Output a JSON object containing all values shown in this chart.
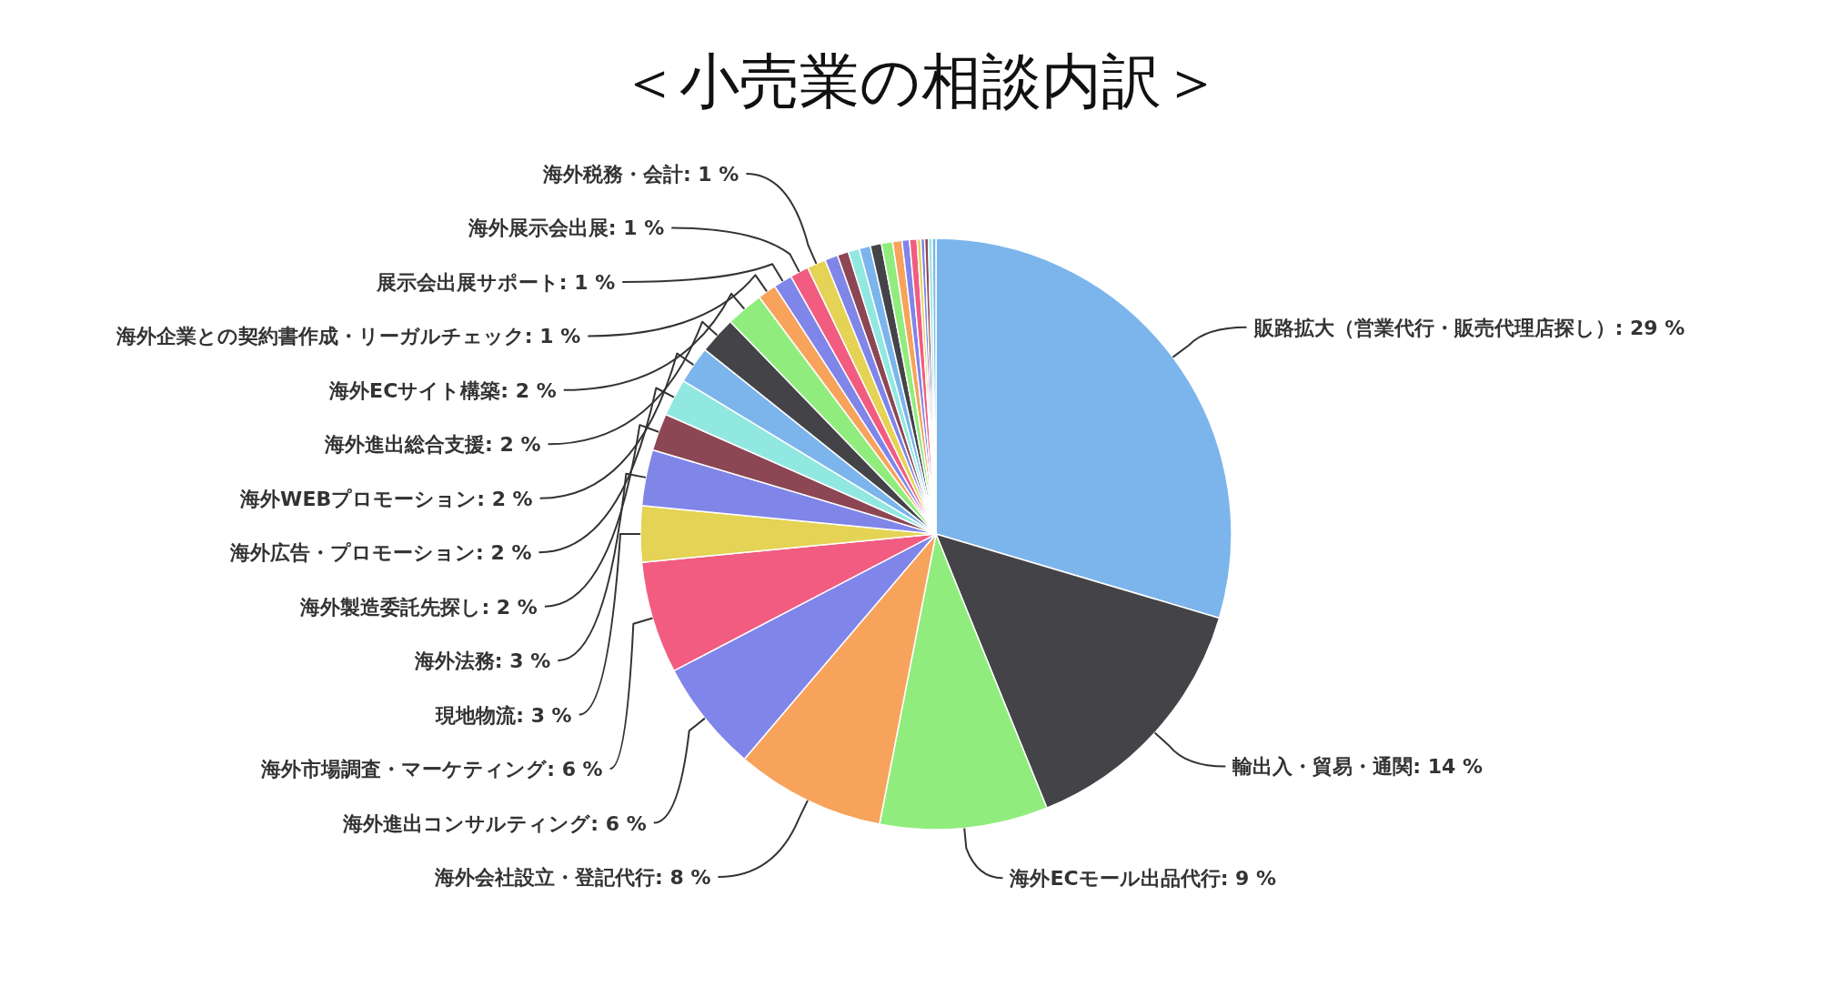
{
  "chart_data": {
    "type": "pie",
    "title": "＜小売業の相談内訳＞",
    "categories": [
      "販路拡大（営業代行・販売代理店探し）",
      "輸出入・貿易・通関",
      "海外ECモール出品代行",
      "海外会社設立・登記代行",
      "海外進出コンサルティング",
      "海外市場調査・マーケティング",
      "現地物流",
      "海外法務",
      "海外製造委託先探し",
      "海外広告・プロモーション",
      "海外WEBプロモーション",
      "海外進出総合支援",
      "海外ECサイト構築",
      "海外企業との契約書作成・リーガルチェック",
      "展示会出展サポート",
      "海外展示会出展",
      "海外税務・会計",
      null,
      null,
      null,
      null,
      null,
      null,
      null,
      null,
      null,
      null,
      null,
      null,
      null,
      null
    ],
    "values": [
      29,
      14,
      9,
      8,
      6,
      6,
      3,
      3,
      2,
      2,
      2,
      2,
      2,
      1,
      1,
      1,
      1,
      0.7,
      0.6,
      0.6,
      0.6,
      0.6,
      0.6,
      0.5,
      0.4,
      0.4,
      0.2,
      0.2,
      0.2,
      0.2,
      0.2
    ],
    "value_labels": [
      "29 %",
      "14 %",
      "9 %",
      "8 %",
      "6 %",
      "6 %",
      "3 %",
      "3 %",
      "2 %",
      "2 %",
      "2 %",
      "2 %",
      "2 %",
      "1 %",
      "1 %",
      "1 %",
      "1 %",
      null,
      null,
      null,
      null,
      null,
      null,
      null,
      null,
      null,
      null,
      null,
      null,
      null,
      null
    ],
    "colors": [
      "#7cb5ec",
      "#434348",
      "#90ed7d",
      "#f7a35c",
      "#8085e9",
      "#f15c80",
      "#e4d354",
      "#8085e8",
      "#8d4653",
      "#91e8e1",
      "#7cb5ec",
      "#434348",
      "#90ed7d",
      "#f7a35c",
      "#8085e9",
      "#f15c80",
      "#e4d354",
      "#8085e8",
      "#8d4653",
      "#91e8e1",
      "#7cb5ec",
      "#434348",
      "#90ed7d",
      "#f7a35c",
      "#8085e9",
      "#f15c80",
      "#e4d354",
      "#8085e8",
      "#8d4653",
      "#91e8e1",
      "#7cb5ec"
    ]
  }
}
